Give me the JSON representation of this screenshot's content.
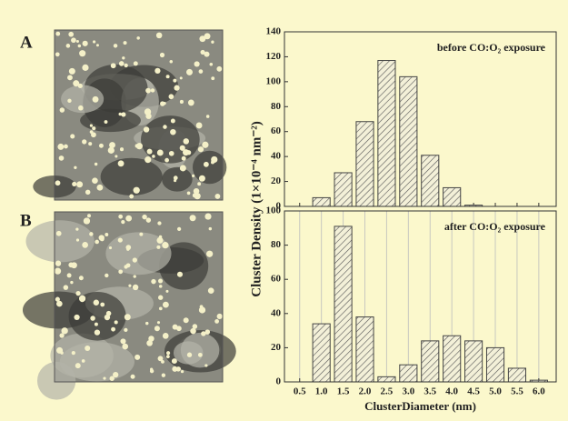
{
  "figure": {
    "panel_labels": [
      "A",
      "B"
    ],
    "ylabel": "Cluster Density (1×10⁻⁴ nm⁻²)"
  },
  "chart_data": [
    {
      "type": "bar",
      "title": "before CO:O₂ exposure",
      "color": "#444444",
      "x": [
        1,
        1.5,
        2,
        2.5,
        3,
        3.5,
        4,
        4.5
      ],
      "values": [
        7,
        27,
        68,
        117,
        104,
        41,
        15,
        1
      ],
      "xlim": [
        0.15,
        6.4
      ],
      "xticks": [
        0.5,
        1,
        1.5,
        2,
        2.5,
        3,
        3.5,
        4,
        4.5,
        5,
        5.5,
        6
      ],
      "ylim": [
        0,
        140
      ],
      "yticks": [
        0,
        20,
        40,
        60,
        80,
        100,
        120,
        140
      ],
      "grid": false
    },
    {
      "type": "bar",
      "title": "after CO:O₂ exposure",
      "color": "#444444",
      "xlabel": "ClusterDiameter (nm)",
      "x": [
        1,
        1.5,
        2,
        2.5,
        3,
        3.5,
        4,
        4.5,
        5,
        5.5,
        6
      ],
      "values": [
        34,
        91,
        38,
        3,
        10,
        24,
        27,
        24,
        20,
        8,
        1
      ],
      "xlim": [
        0.15,
        6.4
      ],
      "xticks": [
        {
          "value": 0.5,
          "label": "0.5"
        },
        {
          "value": 1,
          "label": "1.0"
        },
        {
          "value": 1.5,
          "label": "1.5"
        },
        {
          "value": 2,
          "label": "2.0"
        },
        {
          "value": 2.5,
          "label": "2.5"
        },
        {
          "value": 3,
          "label": "3.0"
        },
        {
          "value": 3.5,
          "label": "3.5"
        },
        {
          "value": 4,
          "label": "4.0"
        },
        {
          "value": 4.5,
          "label": "4.5"
        },
        {
          "value": 5,
          "label": "5.0"
        },
        {
          "value": 5.5,
          "label": "5.5"
        },
        {
          "value": 6,
          "label": "6.0"
        }
      ],
      "ylim": [
        0,
        100
      ],
      "yticks": [
        0,
        20,
        40,
        60,
        80,
        100
      ],
      "grid": true
    }
  ]
}
